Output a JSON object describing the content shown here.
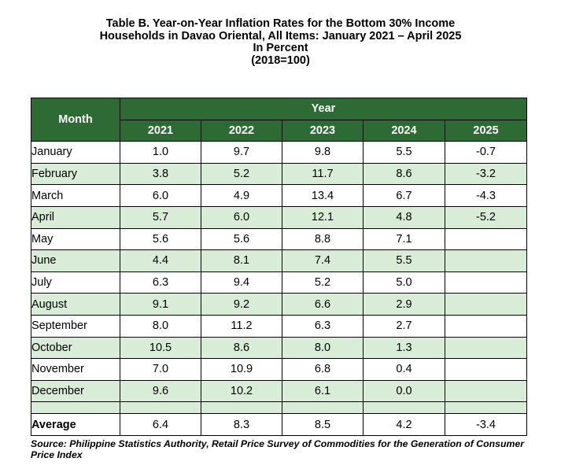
{
  "title": {
    "line1": "Table B. Year-on-Year Inflation Rates for the Bottom 30% Income",
    "line2": "Households in Davao Oriental, All Items: January 2021 – April 2025",
    "line3": "In Percent",
    "line4": "(2018=100)"
  },
  "table": {
    "month_header": "Month",
    "year_header": "Year",
    "years": [
      "2021",
      "2022",
      "2023",
      "2024",
      "2025"
    ],
    "rows": [
      {
        "month": "January",
        "values": [
          "1.0",
          "9.7",
          "9.8",
          "5.5",
          "-0.7"
        ]
      },
      {
        "month": "February",
        "values": [
          "3.8",
          "5.2",
          "11.7",
          "8.6",
          "-3.2"
        ]
      },
      {
        "month": "March",
        "values": [
          "6.0",
          "4.9",
          "13.4",
          "6.7",
          "-4.3"
        ]
      },
      {
        "month": "April",
        "values": [
          "5.7",
          "6.0",
          "12.1",
          "4.8",
          "-5.2"
        ]
      },
      {
        "month": "May",
        "values": [
          "5.6",
          "5.6",
          "8.8",
          "7.1",
          ""
        ]
      },
      {
        "month": "June",
        "values": [
          "4.4",
          "8.1",
          "7.4",
          "5.5",
          ""
        ]
      },
      {
        "month": "July",
        "values": [
          "6.3",
          "9.4",
          "5.2",
          "5.0",
          ""
        ]
      },
      {
        "month": "August",
        "values": [
          "9.1",
          "9.2",
          "6.6",
          "2.9",
          ""
        ]
      },
      {
        "month": "September",
        "values": [
          "8.0",
          "11.2",
          "6.3",
          "2.7",
          ""
        ]
      },
      {
        "month": "October",
        "values": [
          "10.5",
          "8.6",
          "8.0",
          "1.3",
          ""
        ]
      },
      {
        "month": "November",
        "values": [
          "7.0",
          "10.9",
          "6.8",
          "0.4",
          ""
        ]
      },
      {
        "month": "December",
        "values": [
          "9.6",
          "10.2",
          "6.1",
          "0.0",
          ""
        ]
      }
    ],
    "average": {
      "label": "Average",
      "values": [
        "6.4",
        "8.3",
        "8.5",
        "4.2",
        "-3.4"
      ]
    }
  },
  "source": {
    "text": "Source: Philippine Statistics Authority, Retail Price Survey of Commodities for the Generation of Consumer Price Index"
  },
  "colors": {
    "header_bg": "#2e6b34",
    "header_text": "#ffffff",
    "stripe_bg": "#d8ecd8"
  }
}
